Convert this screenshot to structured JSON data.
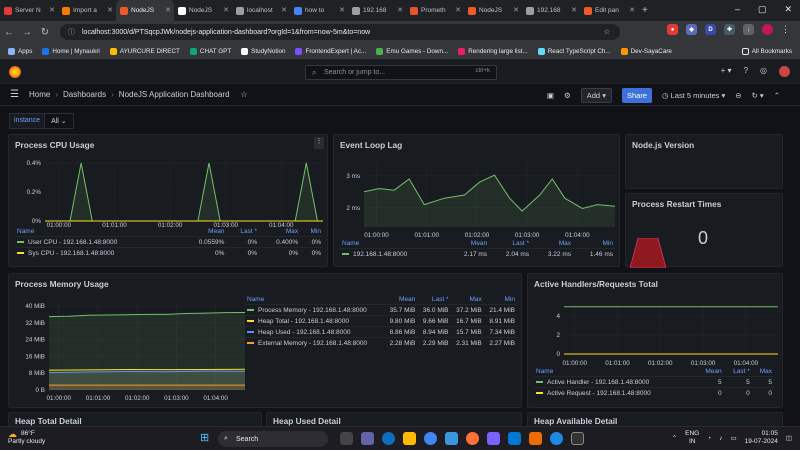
{
  "browser": {
    "tabs": [
      {
        "label": "Server N",
        "color": "#e53935"
      },
      {
        "label": "Import a",
        "color": "#f57c00"
      },
      {
        "label": "NodeJS",
        "color": "#f05a28",
        "active": true
      },
      {
        "label": "NodeJS",
        "color": "#ffffff"
      },
      {
        "label": "localhost",
        "color": "#9e9e9e"
      },
      {
        "label": "how to",
        "color": "#4285f4"
      },
      {
        "label": "192.168",
        "color": "#9e9e9e"
      },
      {
        "label": "Prometh",
        "color": "#e6522c"
      },
      {
        "label": "NodeJS",
        "color": "#f05a28"
      },
      {
        "label": "192.168",
        "color": "#9e9e9e"
      },
      {
        "label": "Edit pan",
        "color": "#f05a28"
      }
    ],
    "url": "localhost:3000/d/PTSqcpJWk/nodejs-application-dashboard?orgId=1&from=now-5m&to=now",
    "bookmarks": [
      {
        "label": "Apps",
        "color": "#8ab4f8"
      },
      {
        "label": "Home | Mynaukri",
        "color": "#1a73e8"
      },
      {
        "label": "AYURCURE DIRECT",
        "color": "#fbbc04"
      },
      {
        "label": "CHAT GPT",
        "color": "#10a37f"
      },
      {
        "label": "StudyNotion",
        "color": "#ffffff"
      },
      {
        "label": "FrontendExpert | Ac...",
        "color": "#7c4dff"
      },
      {
        "label": "Emu Games - Down...",
        "color": "#4caf50"
      },
      {
        "label": "Rendering large list...",
        "color": "#e91e63"
      },
      {
        "label": "React TypeScript Ch...",
        "color": "#61dafb"
      },
      {
        "label": "Dev-SayaCare",
        "color": "#ff9800"
      }
    ],
    "all_bookmarks": "All Bookmarks"
  },
  "grafana": {
    "search_placeholder": "Search or jump to...",
    "search_shortcut": "ctrl+k",
    "breadcrumb": [
      "Home",
      "Dashboards",
      "NodeJS Application Dashboard"
    ],
    "add_label": "Add",
    "share_label": "Share",
    "time_range": "Last 5 minutes",
    "variable_label": "instance",
    "variable_value": "All"
  },
  "panels": {
    "cpu": {
      "title": "Process CPU Usage"
    },
    "eventloop": {
      "title": "Event Loop Lag"
    },
    "nodeversion": {
      "title": "Node.js Version"
    },
    "restart": {
      "title": "Process Restart Times",
      "value": "0"
    },
    "memory": {
      "title": "Process Memory Usage"
    },
    "handlers": {
      "title": "Active Handlers/Requests Total"
    },
    "heaptotal": {
      "title": "Heap Total Detail"
    },
    "heapused": {
      "title": "Heap Used Detail"
    },
    "heapavail": {
      "title": "Heap Available Detail"
    }
  },
  "chart_data": [
    {
      "id": "cpu",
      "type": "line",
      "title": "Process CPU Usage",
      "x": [
        "01:00:00",
        "01:01:00",
        "01:02:00",
        "01:03:00",
        "01:04:00"
      ],
      "y_ticks": [
        "0%",
        "0.2%",
        "0.4%"
      ],
      "ylim": [
        0,
        0.4
      ],
      "series": [
        {
          "name": "User CPU - 192.168.1.48:8000",
          "color": "#73bf69",
          "points": [
            [
              0,
              0
            ],
            [
              0.09,
              0
            ],
            [
              0.13,
              0.4
            ],
            [
              0.17,
              0
            ],
            [
              0.55,
              0
            ],
            [
              0.59,
              0.4
            ],
            [
              0.63,
              0
            ],
            [
              0.9,
              0
            ],
            [
              0.94,
              0.4
            ],
            [
              0.98,
              0
            ]
          ],
          "mean": "0.0559%",
          "last": "0%",
          "max": "0.400%",
          "min": "0%"
        },
        {
          "name": "Sys CPU - 192.168.1.48:8000",
          "color": "#fade2a",
          "points": [
            [
              0,
              0
            ],
            [
              1,
              0
            ]
          ],
          "mean": "0%",
          "last": "0%",
          "max": "0%",
          "min": "0%"
        }
      ],
      "legend_cols": [
        "Name",
        "Mean",
        "Last *",
        "Max",
        "Min"
      ]
    },
    {
      "id": "eventloop",
      "type": "line",
      "title": "Event Loop Lag",
      "x": [
        "01:00:00",
        "01:01:00",
        "01:02:00",
        "01:03:00",
        "01:04:00"
      ],
      "y_ticks": [
        "2 ms",
        "3 ms"
      ],
      "ylim": [
        1.4,
        3.4
      ],
      "series": [
        {
          "name": "192.168.1.48:8000",
          "color": "#73bf69",
          "points": [
            [
              0,
              2.5
            ],
            [
              0.06,
              2.6
            ],
            [
              0.12,
              2.55
            ],
            [
              0.18,
              2.9
            ],
            [
              0.24,
              2.1
            ],
            [
              0.32,
              2.3
            ],
            [
              0.4,
              2.4
            ],
            [
              0.46,
              2.8
            ],
            [
              0.52,
              3.02
            ],
            [
              0.58,
              2.3
            ],
            [
              0.63,
              1.9
            ],
            [
              0.7,
              2.4
            ],
            [
              0.75,
              2.9
            ],
            [
              0.8,
              2.3
            ],
            [
              0.87,
              1.98
            ],
            [
              0.93,
              2.1
            ],
            [
              1,
              2.05
            ]
          ],
          "mean": "2.17 ms",
          "last": "2.04 ms",
          "max": "3.22 ms",
          "min": "1.46 ms"
        }
      ],
      "legend_cols": [
        "Name",
        "Mean",
        "Last *",
        "Max",
        "Min"
      ]
    },
    {
      "id": "memory",
      "type": "line",
      "title": "Process Memory Usage",
      "x": [
        "01:00:00",
        "01:01:00",
        "01:02:00",
        "01:03:00",
        "01:04:00"
      ],
      "y_ticks": [
        "0 B",
        "8 MiB",
        "16 MiB",
        "24 MiB",
        "32 MiB",
        "40 MiB"
      ],
      "ylim": [
        0,
        42
      ],
      "series": [
        {
          "name": "Process Memory - 192.168.1.48:8000",
          "color": "#73bf69",
          "points": [
            [
              0,
              35
            ],
            [
              0.1,
              35.2
            ],
            [
              0.2,
              35.7
            ],
            [
              0.3,
              35.8
            ],
            [
              0.4,
              35.9
            ],
            [
              0.5,
              36.1
            ],
            [
              0.6,
              36.1
            ],
            [
              0.7,
              36.5
            ],
            [
              0.8,
              36.7
            ],
            [
              0.9,
              36.9
            ],
            [
              1,
              37
            ]
          ],
          "mean": "35.7 MiB",
          "last": "36.0 MiB",
          "max": "37.2 MiB",
          "min": "21.4 MiB"
        },
        {
          "name": "Heap Total - 192.168.1.48:8000",
          "color": "#fade2a",
          "points": [
            [
              0,
              9.5
            ],
            [
              0.2,
              9.6
            ],
            [
              0.4,
              9.8
            ],
            [
              0.6,
              9.7
            ],
            [
              0.8,
              9.8
            ],
            [
              1,
              9.9
            ]
          ],
          "mean": "9.80 MiB",
          "last": "9.66 MiB",
          "max": "16.7 MiB",
          "min": "8.91 MiB"
        },
        {
          "name": "Heap Used - 192.168.1.48:8000",
          "color": "#5794f2",
          "points": [
            [
              0,
              8.3
            ],
            [
              0.2,
              8.6
            ],
            [
              0.4,
              8.8
            ],
            [
              0.6,
              8.7
            ],
            [
              0.8,
              9.0
            ],
            [
              1,
              8.9
            ]
          ],
          "mean": "8.86 MiB",
          "last": "8.94 MiB",
          "max": "15.7 MiB",
          "min": "7.34 MiB"
        },
        {
          "name": "External Memory - 192.168.1.48:8000",
          "color": "#ff9830",
          "points": [
            [
              0,
              2.3
            ],
            [
              0.5,
              2.3
            ],
            [
              1,
              2.3
            ]
          ],
          "mean": "2.28 MiB",
          "last": "2.29 MiB",
          "max": "2.31 MiB",
          "min": "2.27 MiB"
        }
      ],
      "legend_cols": [
        "Name",
        "Mean",
        "Last *",
        "Max",
        "Min"
      ]
    },
    {
      "id": "handlers",
      "type": "line",
      "title": "Active Handlers/Requests Total",
      "x": [
        "01:00:00",
        "01:01:00",
        "01:02:00",
        "01:03:00",
        "01:04:00"
      ],
      "y_ticks": [
        "0",
        "2",
        "4"
      ],
      "ylim": [
        0,
        5.5
      ],
      "series": [
        {
          "name": "Active Handler - 192.168.1.48:8000",
          "color": "#73bf69",
          "points": [
            [
              0,
              5
            ],
            [
              1,
              5
            ]
          ],
          "mean": "5",
          "last": "5",
          "max": "5"
        },
        {
          "name": "Active Request - 192.168.1.48:8000",
          "color": "#fade2a",
          "points": [
            [
              0,
              0
            ],
            [
              1,
              0
            ]
          ],
          "mean": "0",
          "last": "0",
          "max": "0"
        }
      ],
      "legend_cols": [
        "Name",
        "Mean",
        "Last *",
        "Max"
      ]
    }
  ],
  "taskbar": {
    "weather_temp": "86°F",
    "weather_desc": "Partly cloudy",
    "search_label": "Search",
    "lang": "ENG",
    "region": "IN",
    "time": "01:05",
    "date": "19-07-2024"
  }
}
